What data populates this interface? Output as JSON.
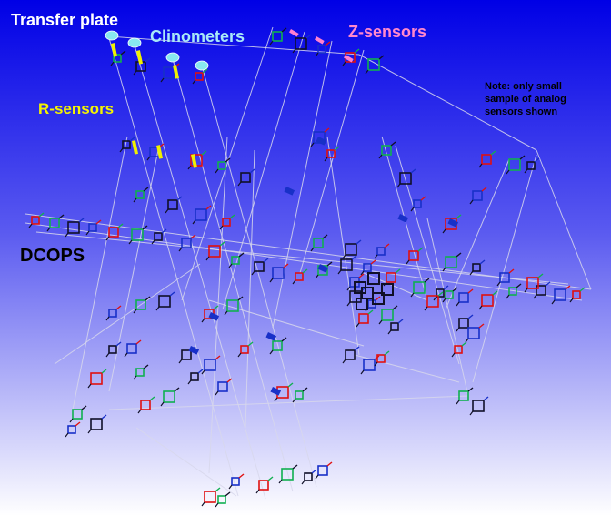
{
  "labels": {
    "transfer_plate": "Transfer plate",
    "clinometers": "Clinometers",
    "z_sensors": "Z-sensors",
    "r_sensors": "R-sensors",
    "dcops": "DCOPS",
    "note_line1": "Note: only small",
    "note_line2": "sample of analog",
    "note_line3": "sensors shown"
  },
  "colors": {
    "background_top": "#0000e6",
    "background_bottom": "#ffffff",
    "transfer_plate": "#ffffff",
    "clinometers": "#a8e8f8",
    "z_sensors": "#ff88cc",
    "r_sensors": "#f4f400",
    "dcops": "#000000",
    "note": "#000000",
    "laser_lines": "#d8d8ec",
    "sensor_red": "#e01010",
    "sensor_green": "#10b050",
    "sensor_dark": "#101028",
    "sensor_blue": "#1830c8",
    "clinometer_marker": "#88e8f0",
    "r_sensor_marker": "#f0f000",
    "z_sensor_marker": "#ff80d0"
  }
}
